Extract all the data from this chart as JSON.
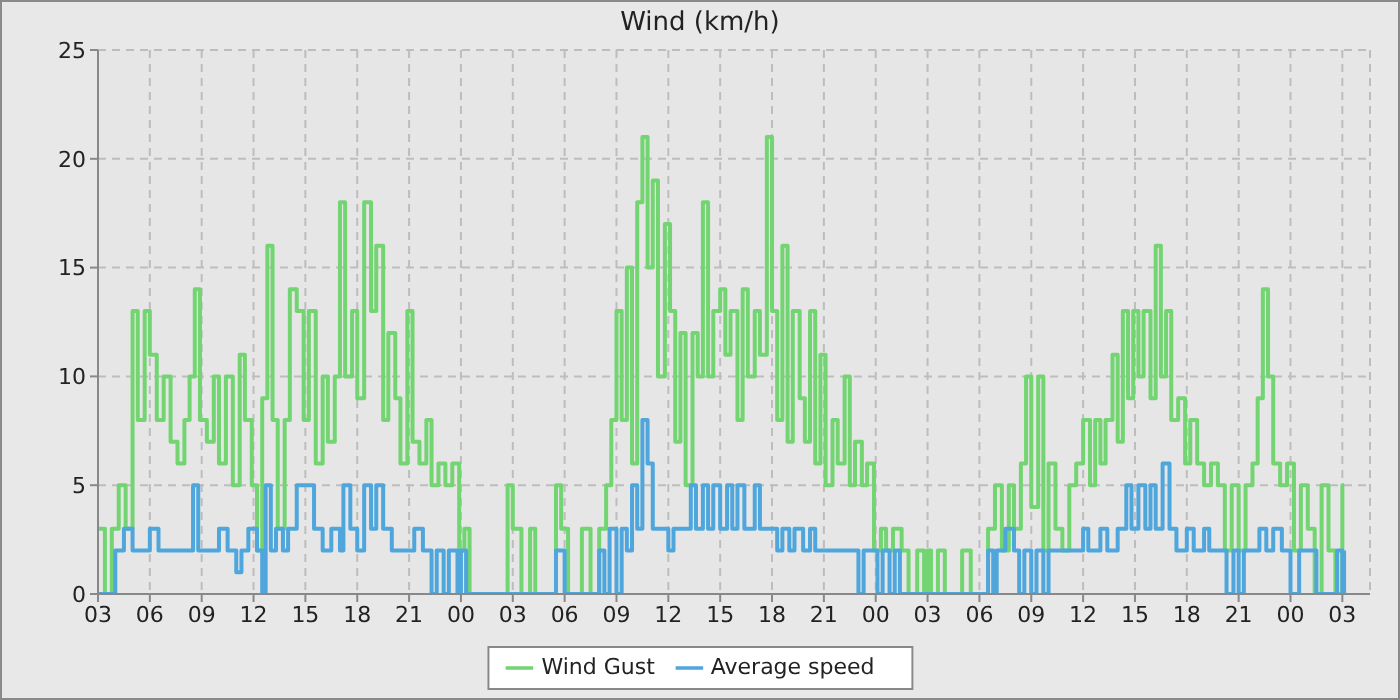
{
  "chart_data": {
    "type": "step",
    "title": "Wind (km/h)",
    "xlim": [
      3,
      76.6
    ],
    "xticks": [
      {
        "value": 3,
        "label": "03"
      },
      {
        "value": 6,
        "label": "06"
      },
      {
        "value": 9,
        "label": "09"
      },
      {
        "value": 12,
        "label": "12"
      },
      {
        "value": 15,
        "label": "15"
      },
      {
        "value": 18,
        "label": "18"
      },
      {
        "value": 21,
        "label": "21"
      },
      {
        "value": 24,
        "label": "00"
      },
      {
        "value": 27,
        "label": "03"
      },
      {
        "value": 30,
        "label": "06"
      },
      {
        "value": 33,
        "label": "09"
      },
      {
        "value": 36,
        "label": "12"
      },
      {
        "value": 39,
        "label": "15"
      },
      {
        "value": 42,
        "label": "18"
      },
      {
        "value": 45,
        "label": "21"
      },
      {
        "value": 48,
        "label": "00"
      },
      {
        "value": 51,
        "label": "03"
      },
      {
        "value": 54,
        "label": "06"
      },
      {
        "value": 57,
        "label": "09"
      },
      {
        "value": 60,
        "label": "12"
      },
      {
        "value": 63,
        "label": "15"
      },
      {
        "value": 66,
        "label": "18"
      },
      {
        "value": 69,
        "label": "21"
      },
      {
        "value": 72,
        "label": "00"
      },
      {
        "value": 75,
        "label": "03"
      }
    ],
    "ylim": [
      0,
      25
    ],
    "yticks": [
      0,
      5,
      10,
      15,
      20,
      25
    ],
    "grid": true,
    "legend": "bottom",
    "line_style": "solid",
    "marker": "none",
    "series": [
      {
        "name": "Wind Gust",
        "color": "#72d572",
        "x": [
          3,
          3.4,
          3.8,
          4.2,
          4.6,
          5,
          5.3,
          5.7,
          6,
          6.4,
          6.8,
          7.2,
          7.6,
          8,
          8.3,
          8.6,
          8.9,
          9.3,
          9.7,
          10,
          10.4,
          10.8,
          11.2,
          11.5,
          11.9,
          12.2,
          12.5,
          12.8,
          13.1,
          13.4,
          13.8,
          14.1,
          14.5,
          14.9,
          15.2,
          15.6,
          16,
          16.3,
          16.7,
          17,
          17.3,
          17.7,
          18,
          18.4,
          18.8,
          19.1,
          19.5,
          19.8,
          20.2,
          20.5,
          20.9,
          21.2,
          21.6,
          22,
          22.3,
          22.7,
          23.1,
          23.5,
          23.9,
          24.2,
          24.5,
          26.7,
          27,
          27.2,
          27.5,
          28,
          28.3,
          29.5,
          29.8,
          30.2,
          31,
          31.5,
          32,
          32.4,
          32.7,
          33,
          33.3,
          33.6,
          33.9,
          34.2,
          34.5,
          34.8,
          35.1,
          35.4,
          35.8,
          36.1,
          36.4,
          36.7,
          37,
          37.4,
          37.7,
          38,
          38.3,
          38.6,
          39,
          39.3,
          39.6,
          40,
          40.3,
          40.6,
          41,
          41.3,
          41.7,
          42,
          42.3,
          42.6,
          42.9,
          43.2,
          43.6,
          43.9,
          44.2,
          44.5,
          44.8,
          45.1,
          45.5,
          45.8,
          46.2,
          46.5,
          46.8,
          47.2,
          47.5,
          47.9,
          48.3,
          48.6,
          49,
          49.5,
          49.9,
          50.4,
          50.8,
          51,
          51.2,
          51.6,
          52,
          53,
          53.5,
          54.5,
          54.9,
          55.3,
          55.7,
          56,
          56.4,
          56.7,
          57,
          57.4,
          57.7,
          58,
          58.4,
          58.8,
          59.2,
          59.6,
          60,
          60.4,
          60.7,
          61,
          61.3,
          61.7,
          62,
          62.3,
          62.6,
          62.9,
          63.2,
          63.5,
          63.9,
          64.2,
          64.5,
          64.8,
          65.1,
          65.5,
          65.9,
          66.2,
          66.6,
          67,
          67.4,
          67.8,
          68.2,
          68.6,
          69,
          69.4,
          69.8,
          70.1,
          70.4,
          70.7,
          71,
          71.4,
          71.8,
          72.2,
          72.6,
          73,
          73.4,
          73.8,
          74.2,
          74.6,
          75,
          75.1
        ],
        "values": [
          3,
          0,
          3,
          5,
          3,
          13,
          8,
          13,
          11,
          8,
          10,
          7,
          6,
          8,
          10,
          14,
          8,
          7,
          10,
          6,
          10,
          5,
          11,
          8,
          5,
          2,
          9,
          16,
          8,
          3,
          8,
          14,
          13,
          8,
          13,
          6,
          10,
          7,
          10,
          18,
          10,
          13,
          9,
          18,
          13,
          16,
          8,
          12,
          9,
          6,
          13,
          7,
          6,
          8,
          5,
          6,
          5,
          6,
          2,
          3,
          0,
          5,
          3,
          3,
          0,
          3,
          0,
          5,
          3,
          0,
          3,
          0,
          3,
          5,
          8,
          13,
          8,
          15,
          6,
          18,
          21,
          15,
          19,
          10,
          17,
          13,
          7,
          12,
          5,
          12,
          10,
          18,
          10,
          13,
          14,
          11,
          13,
          8,
          14,
          10,
          13,
          11,
          21,
          13,
          8,
          16,
          7,
          13,
          9,
          7,
          13,
          6,
          11,
          5,
          8,
          6,
          10,
          5,
          7,
          5,
          6,
          2,
          3,
          2,
          3,
          2,
          0,
          2,
          0,
          2,
          0,
          2,
          0,
          2,
          0,
          3,
          5,
          2,
          5,
          3,
          6,
          10,
          4,
          10,
          2,
          6,
          3,
          2,
          5,
          6,
          8,
          5,
          8,
          6,
          8,
          11,
          7,
          13,
          9,
          13,
          10,
          13,
          9,
          16,
          10,
          13,
          8,
          9,
          6,
          8,
          6,
          5,
          6,
          5,
          2,
          5,
          2,
          5,
          6,
          9,
          14,
          10,
          6,
          5,
          6,
          2,
          5,
          3,
          0,
          5,
          2,
          0,
          5,
          5
        ]
      },
      {
        "name": "Average speed",
        "color": "#4ea6dc",
        "x": [
          3,
          4,
          4.5,
          5,
          6,
          6.5,
          8.5,
          8.8,
          10,
          10.5,
          11,
          11.3,
          11.7,
          12.2,
          12.5,
          12.7,
          13,
          13.3,
          13.7,
          14,
          14.5,
          15.5,
          16,
          16.5,
          17,
          17.2,
          17.6,
          18,
          18.4,
          18.8,
          19.1,
          19.5,
          20,
          21.3,
          21.8,
          22.3,
          22.6,
          23,
          23.3,
          23.8,
          24,
          24.3,
          29,
          29.5,
          30,
          32,
          32.3,
          32.6,
          33,
          33.3,
          33.6,
          33.9,
          34.2,
          34.5,
          34.8,
          35.1,
          36,
          36.3,
          37.3,
          37.6,
          38,
          38.3,
          38.6,
          39,
          39.4,
          39.7,
          40,
          40.4,
          41,
          41.3,
          42.3,
          42.6,
          43,
          43.3,
          43.8,
          44.2,
          44.5,
          47,
          47.3,
          48.1,
          48.4,
          48.8,
          49.1,
          49.4,
          54.5,
          54.8,
          55,
          55.5,
          56,
          56.3,
          56.6,
          57,
          57.3,
          57.7,
          58,
          60,
          60.3,
          61,
          61.4,
          62,
          62.5,
          62.8,
          63.2,
          63.6,
          63.9,
          64.2,
          64.6,
          65,
          65.4,
          66,
          66.4,
          67,
          67.3,
          68.3,
          68.7,
          69,
          69.3,
          70.2,
          70.6,
          71,
          71.5,
          72,
          72.5,
          73.5,
          74.7,
          75,
          75.1
        ],
        "values": [
          0,
          2,
          3,
          2,
          3,
          2,
          5,
          2,
          3,
          2,
          1,
          2,
          3,
          2,
          0,
          5,
          2,
          3,
          2,
          3,
          5,
          3,
          2,
          3,
          2,
          5,
          3,
          2,
          5,
          3,
          5,
          3,
          2,
          3,
          2,
          0,
          2,
          0,
          2,
          0,
          2,
          0,
          0,
          2,
          0,
          2,
          0,
          3,
          0,
          3,
          2,
          5,
          3,
          8,
          6,
          3,
          2,
          3,
          5,
          3,
          5,
          3,
          5,
          3,
          5,
          3,
          5,
          3,
          5,
          3,
          2,
          3,
          2,
          3,
          2,
          3,
          2,
          0,
          2,
          0,
          2,
          0,
          2,
          0,
          2,
          0,
          2,
          3,
          2,
          0,
          2,
          0,
          2,
          0,
          2,
          3,
          2,
          3,
          2,
          3,
          5,
          3,
          5,
          3,
          5,
          3,
          6,
          3,
          2,
          3,
          2,
          3,
          2,
          0,
          2,
          0,
          2,
          3,
          2,
          3,
          2,
          0,
          2,
          0,
          2,
          0,
          2
        ]
      }
    ]
  }
}
